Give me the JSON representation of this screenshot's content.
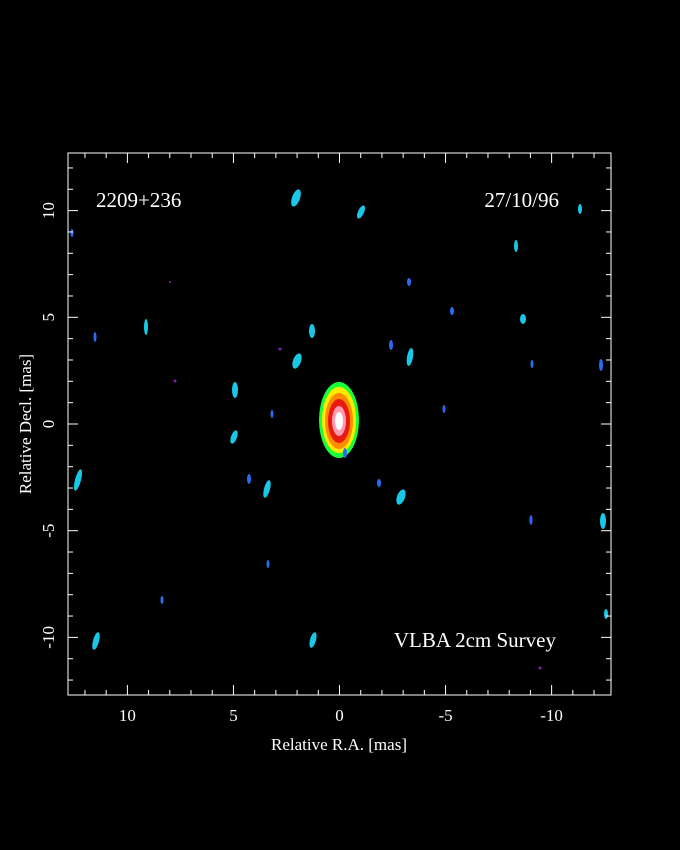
{
  "chart_data": {
    "type": "image",
    "title": "2209+236",
    "date": "27/10/96",
    "annotation": "VLBA 2cm Survey",
    "x_label": "Relative R.A. [mas]",
    "y_label": "Relative Decl. [mas]",
    "xlim": [
      12.8,
      -12.8
    ],
    "ylim": [
      -12.7,
      12.7
    ],
    "xticks": [
      10,
      5,
      0,
      -5,
      -10
    ],
    "yticks": [
      -10,
      -5,
      0,
      5,
      10
    ],
    "xminorticks": [
      12,
      11,
      9,
      8,
      7,
      6,
      4,
      3,
      2,
      1,
      -1,
      -2,
      -3,
      -4,
      -6,
      -7,
      -8,
      -9,
      -11,
      -12
    ],
    "yminorticks": [
      -12,
      -11,
      -9,
      -8,
      -7,
      -6,
      -4,
      -3,
      -2,
      -1,
      1,
      2,
      3,
      4,
      6,
      7,
      8,
      9,
      11,
      12
    ]
  }
}
